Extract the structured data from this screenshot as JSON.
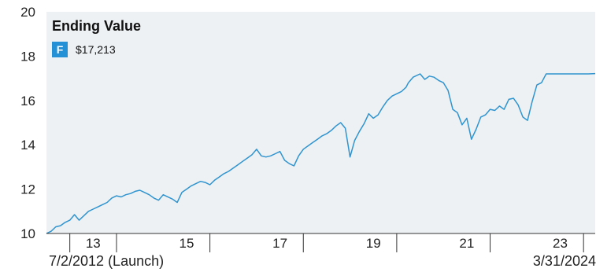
{
  "legend": {
    "title": "Ending Value",
    "series_badge": "F",
    "ending_value": "$17,213"
  },
  "dates": {
    "start": "7/2/2012 (Launch)",
    "end": "3/31/2024"
  },
  "colors": {
    "line": "#2f94cf",
    "plot_bg": "#edf1f3",
    "badge": "#2490d6",
    "axis": "#333333"
  },
  "chart_data": {
    "type": "line",
    "title": "Ending Value",
    "xlabel": "",
    "ylabel": "",
    "xlim": [
      2012.5,
      2024.25
    ],
    "ylim": [
      10,
      20
    ],
    "yticks": [
      10,
      12,
      14,
      16,
      18,
      20
    ],
    "xtick_labels": [
      "13",
      "15",
      "17",
      "19",
      "21",
      "23"
    ],
    "xtick_label_years": [
      2013.5,
      2015.5,
      2017.5,
      2019.5,
      2021.5,
      2023.5
    ],
    "year_boundaries": [
      2013,
      2014,
      2016,
      2018,
      2020,
      2022,
      2024
    ],
    "grid": false,
    "legend_position": "top-left",
    "series": [
      {
        "name": "F",
        "x": [
          2012.5,
          2012.6,
          2012.7,
          2012.8,
          2012.9,
          2013.0,
          2013.1,
          2013.2,
          2013.3,
          2013.4,
          2013.5,
          2013.6,
          2013.7,
          2013.8,
          2013.9,
          2014.0,
          2014.1,
          2014.2,
          2014.3,
          2014.4,
          2014.5,
          2014.6,
          2014.7,
          2014.8,
          2014.9,
          2015.0,
          2015.2,
          2015.3,
          2015.4,
          2015.5,
          2015.6,
          2015.7,
          2015.8,
          2015.9,
          2016.0,
          2016.1,
          2016.2,
          2016.3,
          2016.4,
          2016.5,
          2016.6,
          2016.7,
          2016.8,
          2016.9,
          2017.0,
          2017.1,
          2017.2,
          2017.3,
          2017.4,
          2017.5,
          2017.6,
          2017.7,
          2017.8,
          2017.9,
          2018.0,
          2018.1,
          2018.2,
          2018.3,
          2018.4,
          2018.5,
          2018.6,
          2018.7,
          2018.8,
          2018.9,
          2019.0,
          2019.1,
          2019.2,
          2019.3,
          2019.4,
          2019.5,
          2019.6,
          2019.7,
          2019.8,
          2019.9,
          2020.0,
          2020.1,
          2020.2,
          2020.25,
          2020.35,
          2020.5,
          2020.6,
          2020.7,
          2020.8,
          2020.9,
          2021.0,
          2021.1,
          2021.2,
          2021.3,
          2021.4,
          2021.5,
          2021.6,
          2021.7,
          2021.8,
          2021.9,
          2022.0,
          2022.1,
          2022.2,
          2022.3,
          2022.4,
          2022.5,
          2022.6,
          2022.7,
          2022.8,
          2022.9,
          2023.0,
          2023.1,
          2023.2,
          2023.3,
          2023.4,
          2023.5,
          2023.6,
          2023.7,
          2023.8,
          2023.9,
          2024.0,
          2024.1,
          2024.25
        ],
        "values": [
          10.0,
          10.1,
          10.3,
          10.35,
          10.5,
          10.6,
          10.85,
          10.6,
          10.8,
          11.0,
          11.1,
          11.2,
          11.3,
          11.4,
          11.6,
          11.7,
          11.65,
          11.75,
          11.8,
          11.9,
          11.95,
          11.85,
          11.75,
          11.6,
          11.5,
          11.75,
          11.55,
          11.4,
          11.85,
          12.0,
          12.15,
          12.25,
          12.35,
          12.3,
          12.2,
          12.4,
          12.55,
          12.7,
          12.8,
          12.95,
          13.1,
          13.25,
          13.4,
          13.55,
          13.8,
          13.5,
          13.45,
          13.5,
          13.6,
          13.7,
          13.3,
          13.15,
          13.05,
          13.5,
          13.8,
          13.95,
          14.1,
          14.25,
          14.4,
          14.5,
          14.65,
          14.85,
          15.0,
          14.75,
          13.45,
          14.2,
          14.6,
          14.95,
          15.4,
          15.2,
          15.35,
          15.7,
          16.0,
          16.2,
          16.3,
          16.4,
          16.6,
          16.8,
          17.05,
          17.2,
          16.95,
          17.1,
          17.05,
          16.9,
          16.8,
          16.45,
          15.6,
          15.45,
          14.9,
          15.2,
          14.25,
          14.7,
          15.25,
          15.35,
          15.6,
          15.55,
          15.75,
          15.6,
          16.05,
          16.1,
          15.8,
          15.25,
          15.1,
          15.95,
          16.7,
          16.8,
          17.2,
          17.2,
          17.2,
          17.2,
          17.2,
          17.2,
          17.2,
          17.2,
          17.2,
          17.2,
          17.213
        ]
      }
    ]
  }
}
